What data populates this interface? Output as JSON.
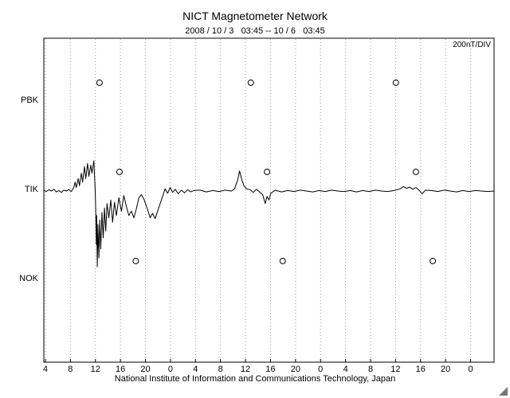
{
  "page": {
    "title": "NICT Magnetometer Network",
    "subtitle": "2008 / 10 / 3   03:45 -- 10 / 6   03:45",
    "footer": "National Institute of Information and Communications Technology, Japan"
  },
  "chart_data": {
    "type": "line",
    "title": "NICT Magnetometer Network",
    "time_range": "2008/10/3 03:45 -- 10/6 03:45",
    "scale_label": "200nT/DIV",
    "grid": "vertical-dotted",
    "x_axis": {
      "span_hours": 72,
      "first_tick_offset_hours": 0.25,
      "tick_interval_hours": 4,
      "tick_labels": [
        "4",
        "8",
        "12",
        "16",
        "20",
        "0",
        "4",
        "8",
        "12",
        "16",
        "20",
        "0",
        "4",
        "8",
        "12",
        "16",
        "20",
        "0"
      ]
    },
    "y_axis": {
      "nT_per_division": 200,
      "stations": [
        {
          "name": "PBK",
          "offset_nT": 200
        },
        {
          "name": "TIK",
          "offset_nT": 0
        },
        {
          "name": "NOK",
          "offset_nT": -200
        }
      ]
    },
    "markers": {
      "shape": "circle",
      "offset_nT": 43,
      "points": [
        {
          "station": "PBK",
          "hour": 8.9
        },
        {
          "station": "PBK",
          "hour": 33.1
        },
        {
          "station": "PBK",
          "hour": 56.3
        },
        {
          "station": "TIK",
          "hour": 12.1
        },
        {
          "station": "TIK",
          "hour": 35.7
        },
        {
          "station": "TIK",
          "hour": 59.5
        },
        {
          "station": "NOK",
          "hour": 14.7
        },
        {
          "station": "NOK",
          "hour": 38.2
        },
        {
          "station": "NOK",
          "hour": 62.2
        }
      ]
    },
    "series": [
      {
        "station": "TIK",
        "unit": "nT",
        "points": [
          [
            0,
            2
          ],
          [
            0.4,
            -1
          ],
          [
            0.8,
            3
          ],
          [
            1.2,
            0
          ],
          [
            1.6,
            4
          ],
          [
            2,
            -2
          ],
          [
            2.4,
            1
          ],
          [
            2.8,
            -3
          ],
          [
            3.2,
            2
          ],
          [
            3.6,
            0
          ],
          [
            4,
            3
          ],
          [
            4.4,
            -1
          ],
          [
            4.8,
            8
          ],
          [
            5,
            20
          ],
          [
            5.2,
            8
          ],
          [
            5.5,
            28
          ],
          [
            5.7,
            12
          ],
          [
            6,
            40
          ],
          [
            6.2,
            20
          ],
          [
            6.5,
            55
          ],
          [
            6.7,
            28
          ],
          [
            7,
            62
          ],
          [
            7.2,
            33
          ],
          [
            7.5,
            58
          ],
          [
            7.7,
            40
          ],
          [
            8,
            68
          ],
          [
            8.1,
            35
          ],
          [
            8.2,
            10
          ],
          [
            8.3,
            -40
          ],
          [
            8.4,
            -120
          ],
          [
            8.45,
            -55
          ],
          [
            8.55,
            -170
          ],
          [
            8.65,
            -75
          ],
          [
            8.8,
            -150
          ],
          [
            8.95,
            -65
          ],
          [
            9.1,
            -130
          ],
          [
            9.3,
            -48
          ],
          [
            9.5,
            -105
          ],
          [
            9.7,
            -38
          ],
          [
            9.9,
            -90
          ],
          [
            10.1,
            -28
          ],
          [
            10.4,
            -60
          ],
          [
            10.7,
            -20
          ],
          [
            11,
            -70
          ],
          [
            11.3,
            -25
          ],
          [
            11.6,
            -55
          ],
          [
            12,
            -15
          ],
          [
            12.4,
            -45
          ],
          [
            12.8,
            -10
          ],
          [
            13.2,
            -35
          ],
          [
            13.6,
            -55
          ],
          [
            14,
            -45
          ],
          [
            14.4,
            -60
          ],
          [
            14.8,
            -40
          ],
          [
            15.2,
            -15
          ],
          [
            15.6,
            -8
          ],
          [
            16,
            -18
          ],
          [
            16.6,
            -42
          ],
          [
            17,
            -60
          ],
          [
            17.4,
            -50
          ],
          [
            17.8,
            -62
          ],
          [
            18.2,
            -45
          ],
          [
            18.6,
            -28
          ],
          [
            19,
            -12
          ],
          [
            19.4,
            5
          ],
          [
            19.8,
            -5
          ],
          [
            20.2,
            8
          ],
          [
            20.6,
            -3
          ],
          [
            21,
            4
          ],
          [
            21.5,
            -6
          ],
          [
            22,
            2
          ],
          [
            22.5,
            -4
          ],
          [
            23,
            3
          ],
          [
            23.5,
            -2
          ],
          [
            24,
            1
          ],
          [
            25,
            2
          ],
          [
            26,
            -2
          ],
          [
            27,
            1
          ],
          [
            28,
            -1
          ],
          [
            29,
            2
          ],
          [
            30,
            0
          ],
          [
            30.5,
            5
          ],
          [
            31,
            25
          ],
          [
            31.3,
            45
          ],
          [
            31.6,
            28
          ],
          [
            32,
            12
          ],
          [
            32.4,
            5
          ],
          [
            33,
            3
          ],
          [
            33.5,
            -3
          ],
          [
            34,
            4
          ],
          [
            34.5,
            -2
          ],
          [
            35,
            -8
          ],
          [
            35.4,
            -28
          ],
          [
            35.7,
            -12
          ],
          [
            36,
            -20
          ],
          [
            36.3,
            -5
          ],
          [
            37,
            2
          ],
          [
            38,
            -2
          ],
          [
            39,
            1
          ],
          [
            40,
            -1
          ],
          [
            41,
            2
          ],
          [
            42,
            0
          ],
          [
            43,
            -2
          ],
          [
            44,
            1
          ],
          [
            45,
            -1
          ],
          [
            46,
            2
          ],
          [
            47,
            0
          ],
          [
            48,
            -1
          ],
          [
            49,
            1
          ],
          [
            50,
            -2
          ],
          [
            51,
            1
          ],
          [
            52,
            -1
          ],
          [
            53,
            2
          ],
          [
            54,
            0
          ],
          [
            55,
            -1
          ],
          [
            56,
            1
          ],
          [
            57,
            5
          ],
          [
            57.5,
            10
          ],
          [
            58,
            6
          ],
          [
            58.5,
            9
          ],
          [
            59,
            4
          ],
          [
            59.5,
            8
          ],
          [
            60,
            2
          ],
          [
            60.5,
            -6
          ],
          [
            61,
            2
          ],
          [
            62,
            1
          ],
          [
            63,
            -1
          ],
          [
            64,
            2
          ],
          [
            65,
            0
          ],
          [
            66,
            -2
          ],
          [
            67,
            1
          ],
          [
            68,
            -1
          ],
          [
            69,
            1
          ],
          [
            70,
            0
          ],
          [
            71,
            -1
          ],
          [
            72,
            0
          ]
        ]
      }
    ]
  }
}
